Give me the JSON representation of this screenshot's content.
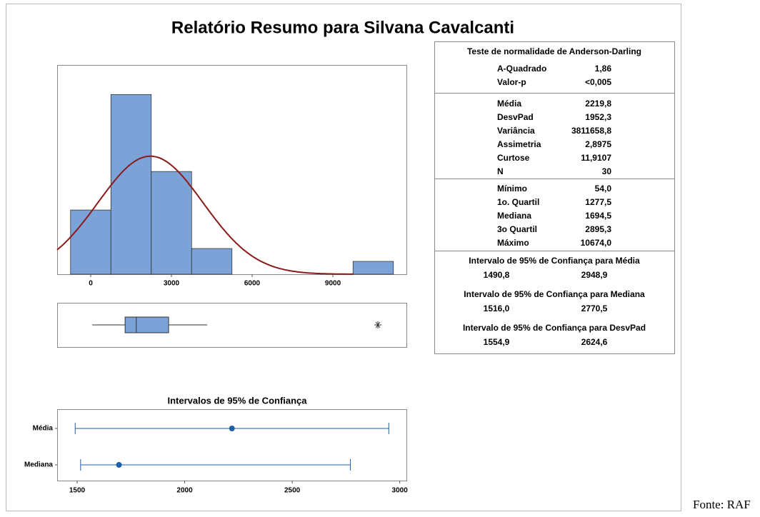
{
  "title": "Relatório Resumo para Silvana Cavalcanti",
  "source": "Fonte: RAF",
  "stats": {
    "normality": {
      "title": "Teste de normalidade de Anderson-Darling",
      "rows": [
        [
          "A-Quadrado",
          "1,86"
        ],
        [
          "Valor-p",
          "<0,005"
        ]
      ]
    },
    "descriptive": {
      "rows": [
        [
          "Média",
          "2219,8"
        ],
        [
          "DesvPad",
          "1952,3"
        ],
        [
          "Variância",
          "3811658,8"
        ],
        [
          "Assimetria",
          "2,8975"
        ],
        [
          "Curtose",
          "11,9107"
        ],
        [
          "N",
          "30"
        ]
      ]
    },
    "quartiles": {
      "rows": [
        [
          "Mínimo",
          "54,0"
        ],
        [
          "1o. Quartil",
          "1277,5"
        ],
        [
          "Mediana",
          "1694,5"
        ],
        [
          "3o Quartil",
          "2895,3"
        ],
        [
          "Máximo",
          "10674,0"
        ]
      ]
    },
    "intervals": [
      {
        "title": "Intervalo de 95% de Confiança para Média",
        "low": "1490,8",
        "high": "2948,9"
      },
      {
        "title": "Intervalo de 95% de Confiança  para Mediana",
        "low": "1516,0",
        "high": "2770,5"
      },
      {
        "title": "Intervalo de 95% de Confiança  para DesvPad",
        "low": "1554,9",
        "high": "2624,6"
      }
    ]
  },
  "chart_data": [
    {
      "type": "histogram",
      "bins": [
        -750,
        750,
        2250,
        3750,
        5250,
        6750,
        8250,
        9750,
        11250
      ],
      "values": [
        5,
        14,
        8,
        2,
        0,
        0,
        0,
        1
      ],
      "color": "#7ba3d8",
      "xlim": [
        -1248,
        11734
      ],
      "ylim": [
        0,
        16.3
      ],
      "xticks": [
        0,
        3000,
        6000,
        9000
      ],
      "curve": {
        "mean": 2219.8,
        "sd": 1952.3,
        "n": 30,
        "color": "#8b1a1a"
      }
    },
    {
      "type": "box",
      "min": 54,
      "q1": 1277.5,
      "median": 1694.5,
      "q3": 2895.3,
      "whisker_high": 4330,
      "outliers": [
        10674
      ],
      "color": "#7ba3d8",
      "xlim": [
        -1248,
        11734
      ]
    },
    {
      "type": "interval",
      "title": "Intervalos de 95% de Confiança",
      "categories": [
        "Média",
        "Mediana"
      ],
      "values": [
        2219.8,
        1694.5
      ],
      "low": [
        1490.8,
        1516.0
      ],
      "high": [
        2948.9,
        2770.5
      ],
      "color": "#1f5fa8",
      "xlim": [
        1407,
        3031
      ],
      "xticks": [
        1500,
        2000,
        2500,
        3000
      ]
    }
  ]
}
